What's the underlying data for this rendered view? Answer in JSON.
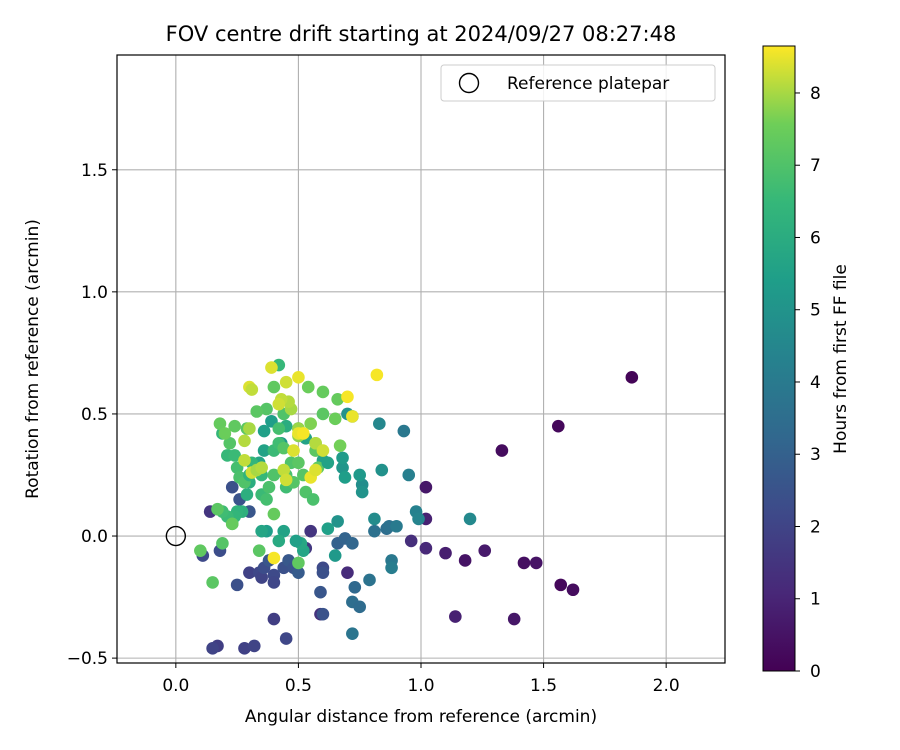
{
  "chart_data": {
    "type": "scatter",
    "title": "FOV centre drift starting at 2024/09/27 08:27:48",
    "xlabel": "Angular distance from reference (arcmin)",
    "ylabel": "Rotation from reference (arcmin)",
    "xlim": [
      -0.24,
      2.24
    ],
    "ylim": [
      -0.52,
      1.97
    ],
    "xticks": [
      0.0,
      0.5,
      1.0,
      1.5,
      2.0
    ],
    "xtick_labels": [
      "0.0",
      "0.5",
      "1.0",
      "1.5",
      "2.0"
    ],
    "yticks": [
      -0.5,
      0.0,
      0.5,
      1.0,
      1.5
    ],
    "ytick_labels": [
      "−0.5",
      "0.0",
      "0.5",
      "1.0",
      "1.5"
    ],
    "grid": true,
    "legend": {
      "placement": "top-right",
      "entries": [
        "Reference platepar"
      ]
    },
    "reference_point": {
      "x": 0.0,
      "y": 0.0,
      "label": "Reference platepar"
    },
    "colorbar": {
      "label": "Hours from first FF file",
      "range": [
        0,
        8.65
      ],
      "ticks": [
        0,
        1,
        2,
        3,
        4,
        5,
        6,
        7,
        8
      ],
      "tick_labels": [
        "0",
        "1",
        "2",
        "3",
        "4",
        "5",
        "6",
        "7",
        "8"
      ],
      "colormap": "viridis"
    },
    "points": [
      [
        1.86,
        0.65,
        0.1
      ],
      [
        1.56,
        0.45,
        0.2
      ],
      [
        1.33,
        0.35,
        0.3
      ],
      [
        1.57,
        -0.2,
        0.2
      ],
      [
        1.62,
        -0.22,
        0.3
      ],
      [
        1.47,
        -0.11,
        0.5
      ],
      [
        1.42,
        -0.11,
        0.4
      ],
      [
        1.38,
        -0.34,
        0.6
      ],
      [
        1.26,
        -0.06,
        0.7
      ],
      [
        1.18,
        -0.1,
        0.5
      ],
      [
        1.14,
        -0.33,
        0.9
      ],
      [
        1.1,
        -0.07,
        0.8
      ],
      [
        1.02,
        0.2,
        0.6
      ],
      [
        1.02,
        0.07,
        0.9
      ],
      [
        1.02,
        -0.05,
        1.1
      ],
      [
        0.96,
        -0.02,
        1.3
      ],
      [
        0.7,
        -0.15,
        1.2
      ],
      [
        0.59,
        -0.32,
        1.4
      ],
      [
        0.55,
        0.02,
        1.5
      ],
      [
        0.53,
        -0.05,
        1.6
      ],
      [
        0.14,
        0.1,
        1.5
      ],
      [
        0.17,
        -0.45,
        1.8
      ],
      [
        0.15,
        -0.46,
        2.0
      ],
      [
        0.28,
        -0.46,
        1.9
      ],
      [
        0.32,
        -0.45,
        2.0
      ],
      [
        0.45,
        -0.42,
        2.1
      ],
      [
        0.4,
        -0.34,
        1.8
      ],
      [
        0.6,
        -0.13,
        2.2
      ],
      [
        0.6,
        -0.15,
        2.4
      ],
      [
        0.6,
        -0.32,
        2.5
      ],
      [
        0.59,
        -0.23,
        2.6
      ],
      [
        0.11,
        -0.08,
        2.2
      ],
      [
        0.18,
        -0.06,
        2.3
      ],
      [
        0.25,
        -0.2,
        2.4
      ],
      [
        0.3,
        -0.15,
        1.9
      ],
      [
        0.34,
        -0.15,
        2.1
      ],
      [
        0.35,
        -0.17,
        2.0
      ],
      [
        0.36,
        -0.13,
        2.3
      ],
      [
        0.38,
        -0.1,
        2.6
      ],
      [
        0.4,
        -0.16,
        2.2
      ],
      [
        0.4,
        -0.19,
        2.1
      ],
      [
        0.44,
        -0.13,
        2.4
      ],
      [
        0.46,
        -0.1,
        2.7
      ],
      [
        0.48,
        -0.13,
        2.5
      ],
      [
        0.5,
        -0.15,
        2.8
      ],
      [
        0.23,
        0.2,
        2.4
      ],
      [
        0.26,
        0.15,
        2.5
      ],
      [
        0.3,
        0.1,
        2.6
      ],
      [
        0.66,
        -0.03,
        3.0
      ],
      [
        0.69,
        -0.01,
        3.1
      ],
      [
        0.72,
        -0.03,
        3.2
      ],
      [
        0.73,
        -0.21,
        3.3
      ],
      [
        0.72,
        -0.27,
        3.5
      ],
      [
        0.75,
        -0.29,
        3.4
      ],
      [
        0.72,
        -0.4,
        3.8
      ],
      [
        0.79,
        -0.18,
        3.7
      ],
      [
        0.81,
        0.02,
        3.6
      ],
      [
        0.86,
        0.03,
        3.5
      ],
      [
        0.87,
        0.04,
        3.6
      ],
      [
        0.88,
        -0.1,
        3.9
      ],
      [
        0.88,
        -0.13,
        4.1
      ],
      [
        0.9,
        0.04,
        4.0
      ],
      [
        0.93,
        0.43,
        3.9
      ],
      [
        0.95,
        0.25,
        4.2
      ],
      [
        0.98,
        0.1,
        4.3
      ],
      [
        0.99,
        0.07,
        4.4
      ],
      [
        1.2,
        0.07,
        4.6
      ],
      [
        0.83,
        0.46,
        4.5
      ],
      [
        0.84,
        0.27,
        4.9
      ],
      [
        0.81,
        0.07,
        4.7
      ],
      [
        0.76,
        0.21,
        4.8
      ],
      [
        0.76,
        0.18,
        5.0
      ],
      [
        0.75,
        0.25,
        5.2
      ],
      [
        0.68,
        0.28,
        5.1
      ],
      [
        0.68,
        0.32,
        5.3
      ],
      [
        0.69,
        0.24,
        5.4
      ],
      [
        0.66,
        0.06,
        5.0
      ],
      [
        0.65,
        -0.08,
        5.2
      ],
      [
        0.62,
        0.03,
        5.5
      ],
      [
        0.6,
        0.31,
        5.6
      ],
      [
        0.52,
        -0.06,
        5.7
      ],
      [
        0.51,
        -0.03,
        5.8
      ],
      [
        0.49,
        -0.02,
        5.5
      ],
      [
        0.44,
        0.02,
        5.6
      ],
      [
        0.42,
        -0.02,
        5.9
      ],
      [
        0.37,
        0.02,
        5.4
      ],
      [
        0.35,
        0.02,
        5.7
      ],
      [
        0.7,
        0.5,
        5.0
      ],
      [
        0.72,
        0.49,
        5.3
      ],
      [
        0.53,
        0.4,
        5.6
      ],
      [
        0.5,
        0.44,
        5.8
      ],
      [
        0.45,
        0.45,
        6.0
      ],
      [
        0.43,
        0.38,
        5.2
      ],
      [
        0.39,
        0.47,
        5.4
      ],
      [
        0.36,
        0.43,
        5.5
      ],
      [
        0.36,
        0.35,
        5.6
      ],
      [
        0.34,
        0.3,
        5.7
      ],
      [
        0.32,
        0.28,
        5.9
      ],
      [
        0.3,
        0.22,
        6.0
      ],
      [
        0.29,
        0.17,
        6.1
      ],
      [
        0.27,
        0.1,
        6.2
      ],
      [
        0.25,
        0.1,
        6.3
      ],
      [
        0.24,
        0.08,
        6.4
      ],
      [
        0.23,
        0.05,
        6.5
      ],
      [
        0.21,
        0.08,
        6.6
      ],
      [
        0.19,
        0.1,
        6.7
      ],
      [
        0.19,
        0.42,
        6.4
      ],
      [
        0.21,
        0.33,
        6.5
      ],
      [
        0.24,
        0.33,
        6.6
      ],
      [
        0.25,
        0.28,
        6.8
      ],
      [
        0.26,
        0.24,
        6.9
      ],
      [
        0.28,
        0.22,
        7.0
      ],
      [
        0.3,
        0.25,
        6.3
      ],
      [
        0.31,
        0.3,
        6.4
      ],
      [
        0.35,
        0.25,
        6.5
      ],
      [
        0.35,
        0.17,
        6.6
      ],
      [
        0.37,
        0.15,
        6.8
      ],
      [
        0.38,
        0.2,
        6.9
      ],
      [
        0.4,
        0.25,
        7.0
      ],
      [
        0.4,
        0.35,
        6.6
      ],
      [
        0.42,
        0.38,
        6.7
      ],
      [
        0.42,
        0.44,
        6.8
      ],
      [
        0.44,
        0.5,
        7.0
      ],
      [
        0.44,
        0.36,
        7.1
      ],
      [
        0.45,
        0.25,
        6.9
      ],
      [
        0.45,
        0.2,
        6.7
      ],
      [
        0.47,
        0.3,
        7.0
      ],
      [
        0.48,
        0.22,
        7.1
      ],
      [
        0.5,
        0.3,
        7.2
      ],
      [
        0.52,
        0.25,
        7.1
      ],
      [
        0.53,
        0.18,
        7.0
      ],
      [
        0.56,
        0.15,
        6.9
      ],
      [
        0.57,
        0.35,
        7.2
      ],
      [
        0.58,
        0.28,
        7.3
      ],
      [
        0.6,
        0.5,
        7.2
      ],
      [
        0.6,
        0.59,
        7.4
      ],
      [
        0.65,
        0.48,
        7.5
      ],
      [
        0.66,
        0.56,
        7.4
      ],
      [
        0.54,
        0.61,
        7.5
      ],
      [
        0.42,
        0.7,
        6.5
      ],
      [
        0.4,
        0.61,
        7.3
      ],
      [
        0.37,
        0.52,
        7.1
      ],
      [
        0.33,
        0.51,
        7.2
      ],
      [
        0.29,
        0.44,
        7.2
      ],
      [
        0.24,
        0.45,
        7.3
      ],
      [
        0.22,
        0.38,
        7.1
      ],
      [
        0.18,
        0.46,
        7.4
      ],
      [
        0.2,
        0.42,
        7.5
      ],
      [
        0.17,
        0.11,
        7.2
      ],
      [
        0.19,
        -0.03,
        7.1
      ],
      [
        0.15,
        -0.19,
        7.2
      ],
      [
        0.1,
        -0.06,
        7.3
      ],
      [
        0.34,
        -0.06,
        7.2
      ],
      [
        0.4,
        0.09,
        7.4
      ],
      [
        0.5,
        -0.11,
        7.3
      ],
      [
        0.23,
        0.05,
        7.4
      ],
      [
        0.67,
        0.37,
        7.6
      ],
      [
        0.57,
        0.38,
        7.6
      ],
      [
        0.55,
        0.46,
        7.7
      ],
      [
        0.5,
        0.41,
        7.8
      ],
      [
        0.5,
        0.44,
        7.9
      ],
      [
        0.47,
        0.52,
        8.0
      ],
      [
        0.46,
        0.55,
        8.1
      ],
      [
        0.43,
        0.56,
        8.2
      ],
      [
        0.42,
        0.54,
        8.3
      ],
      [
        0.39,
        0.69,
        8.4
      ],
      [
        0.45,
        0.63,
        8.3
      ],
      [
        0.5,
        0.65,
        8.5
      ],
      [
        0.3,
        0.61,
        8.4
      ],
      [
        0.31,
        0.6,
        8.2
      ],
      [
        0.3,
        0.44,
        8.0
      ],
      [
        0.28,
        0.39,
        8.1
      ],
      [
        0.28,
        0.31,
        8.2
      ],
      [
        0.31,
        0.26,
        8.3
      ],
      [
        0.33,
        0.27,
        8.0
      ],
      [
        0.35,
        0.28,
        8.1
      ],
      [
        0.44,
        0.27,
        8.2
      ],
      [
        0.45,
        0.23,
        8.3
      ],
      [
        0.48,
        0.35,
        8.4
      ],
      [
        0.5,
        0.42,
        8.5
      ],
      [
        0.52,
        0.42,
        8.6
      ],
      [
        0.55,
        0.24,
        8.5
      ],
      [
        0.57,
        0.27,
        8.4
      ],
      [
        0.57,
        0.38,
        8.1
      ],
      [
        0.7,
        0.57,
        8.6
      ],
      [
        0.72,
        0.49,
        8.5
      ],
      [
        0.82,
        0.66,
        8.6
      ],
      [
        0.4,
        -0.09,
        8.6
      ],
      [
        0.6,
        0.35,
        8.3
      ],
      [
        0.62,
        0.3,
        5.6
      ]
    ]
  }
}
